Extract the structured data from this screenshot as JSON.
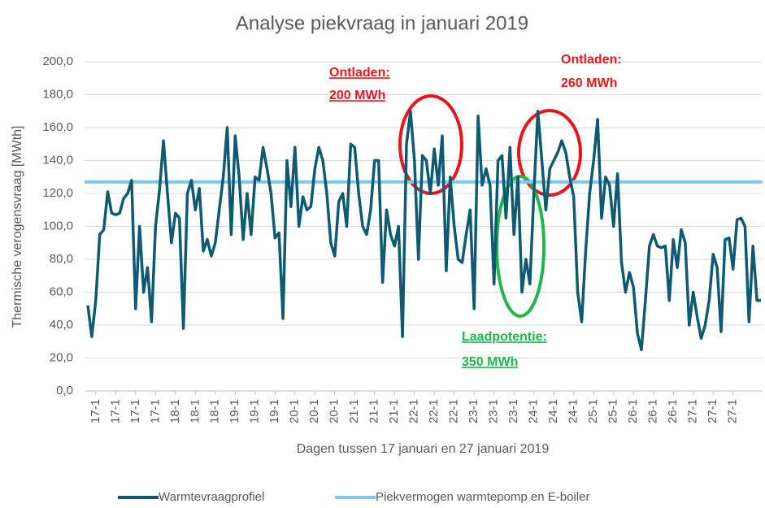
{
  "chart_data": {
    "type": "line",
    "title": "Analyse piekvraag in januari 2019",
    "x_label": "Dagen tussen 17 januari en 27 januari 2019",
    "y_label": "Thermische verogensvraag [MWth]",
    "categories": [
      null,
      null,
      "17-1",
      null,
      null,
      null,
      null,
      "17-1",
      null,
      null,
      null,
      null,
      "17-1",
      null,
      null,
      null,
      null,
      "17-1",
      null,
      null,
      null,
      null,
      "18-1",
      null,
      null,
      null,
      null,
      "18-1",
      null,
      null,
      null,
      null,
      "18-1",
      null,
      null,
      null,
      null,
      "19-1",
      null,
      null,
      null,
      null,
      "19-1",
      null,
      null,
      null,
      null,
      "19-1",
      null,
      null,
      null,
      null,
      "20-1",
      null,
      null,
      null,
      null,
      "20-1",
      null,
      null,
      null,
      null,
      "20-1",
      null,
      null,
      null,
      null,
      "21-1",
      null,
      null,
      null,
      null,
      "21-1",
      null,
      null,
      null,
      null,
      "21-1",
      null,
      null,
      null,
      null,
      "22-1",
      null,
      null,
      null,
      null,
      "22-1",
      null,
      null,
      null,
      null,
      "22-1",
      null,
      null,
      null,
      null,
      "23-1",
      null,
      null,
      null,
      null,
      "23-1",
      null,
      null,
      null,
      null,
      "23-1",
      null,
      null,
      null,
      null,
      "24-1",
      null,
      null,
      null,
      null,
      "24-1",
      null,
      null,
      null,
      null,
      "24-1",
      null,
      null,
      null,
      null,
      "25-1",
      null,
      null,
      null,
      null,
      "25-1",
      null,
      null,
      null,
      null,
      "26-1",
      null,
      null,
      null,
      null,
      "26-1",
      null,
      null,
      null,
      null,
      "26-1",
      null,
      null,
      null,
      null,
      "27-1",
      null,
      null,
      null,
      null,
      "27-1",
      null,
      null,
      null,
      null,
      "27-1",
      null,
      null,
      null,
      null,
      null,
      null,
      null
    ],
    "series": [
      {
        "name": "Warmtevraagprofiel",
        "color": "#0e5a73",
        "values": [
          52,
          33,
          55,
          95,
          98,
          121,
          108,
          107,
          108,
          117,
          120,
          128,
          50,
          100,
          60,
          75,
          42,
          100,
          122,
          152,
          120,
          90,
          108,
          105,
          38,
          120,
          128,
          110,
          123,
          85,
          92,
          82,
          90,
          110,
          130,
          160,
          95,
          155,
          130,
          92,
          120,
          95,
          130,
          128,
          148,
          135,
          120,
          93,
          96,
          44,
          140,
          112,
          148,
          100,
          118,
          110,
          112,
          135,
          148,
          140,
          120,
          90,
          82,
          115,
          120,
          100,
          150,
          148,
          120,
          100,
          95,
          110,
          140,
          140,
          66,
          110,
          95,
          88,
          100,
          33,
          150,
          170,
          140,
          80,
          143,
          140,
          120,
          147,
          125,
          155,
          73,
          130,
          100,
          80,
          78,
          95,
          110,
          50,
          167,
          125,
          135,
          125,
          65,
          140,
          143,
          105,
          148,
          95,
          130,
          60,
          80,
          65,
          120,
          170,
          140,
          110,
          135,
          140,
          145,
          152,
          145,
          130,
          118,
          60,
          42,
          85,
          120,
          140,
          165,
          105,
          130,
          125,
          100,
          132,
          78,
          60,
          72,
          63,
          35,
          25,
          55,
          88,
          95,
          88,
          87,
          88,
          55,
          92,
          75,
          98,
          90,
          40,
          60,
          45,
          32,
          40,
          55,
          83,
          75,
          36,
          92,
          93,
          74,
          104,
          105,
          100,
          42,
          88,
          55,
          55
        ]
      }
    ],
    "hlines": [
      {
        "name": "Piekvermogen warmtepomp en E-boiler",
        "color": "#7cc8ee",
        "value": 127
      }
    ],
    "annotations": [
      "Ontladen:",
      "200 MWh",
      "Ontladen:",
      "260 MWh",
      "Laadpotentie:",
      "350 MWh"
    ],
    "ylim": [
      0,
      200
    ],
    "yticks": [
      {
        "value": 0,
        "label": "0,0"
      },
      {
        "value": 20,
        "label": "20,0"
      },
      {
        "value": 40,
        "label": "40,0"
      },
      {
        "value": 60,
        "label": "60,0"
      },
      {
        "value": 80,
        "label": "80,0"
      },
      {
        "value": 100,
        "label": "100,0"
      },
      {
        "value": 120,
        "label": "120,0"
      },
      {
        "value": 140,
        "label": "140,0"
      },
      {
        "value": 160,
        "label": "160,0"
      },
      {
        "value": 180,
        "label": "180,0"
      },
      {
        "value": 200,
        "label": "200,0"
      }
    ],
    "grid": true
  }
}
